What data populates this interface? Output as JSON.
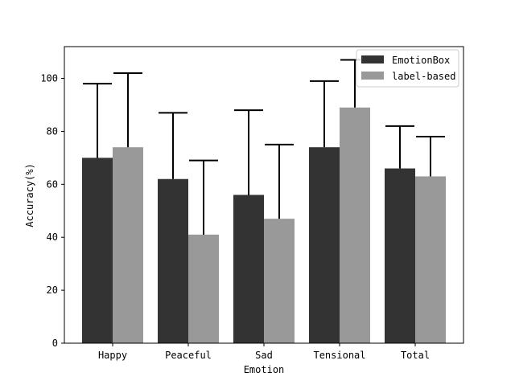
{
  "chart_data": {
    "type": "bar",
    "title": "",
    "xlabel": "Emotion",
    "ylabel": "Accuracy(%)",
    "categories": [
      "Happy",
      "Peaceful",
      "Sad",
      "Tensional",
      "Total"
    ],
    "ylim": [
      0,
      112
    ],
    "yticks": [
      0,
      20,
      40,
      60,
      80,
      100
    ],
    "grid": false,
    "legend_position": "top-right",
    "series": [
      {
        "name": "EmotionBox",
        "color": "#333333",
        "values": [
          70,
          62,
          56,
          74,
          66
        ],
        "error_upper": [
          98,
          87,
          88,
          99,
          82
        ]
      },
      {
        "name": "label-based",
        "color": "#999999",
        "values": [
          74,
          41,
          47,
          89,
          63
        ],
        "error_upper": [
          102,
          69,
          75,
          107,
          78
        ]
      }
    ]
  }
}
